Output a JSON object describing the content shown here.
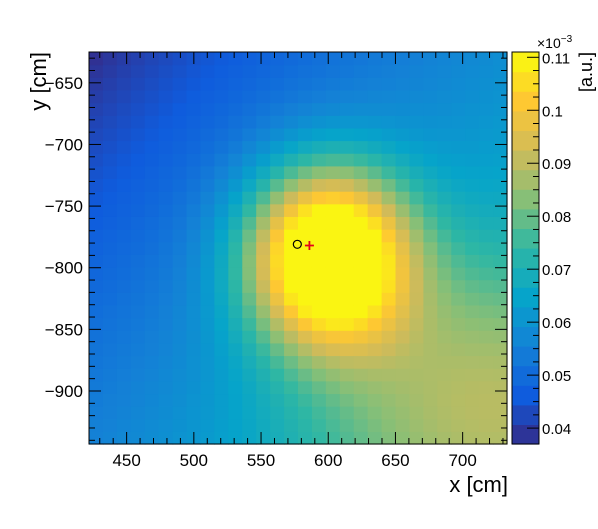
{
  "chart_data": {
    "type": "heatmap",
    "title": "",
    "xlabel": "x [cm]",
    "ylabel": "y [cm]",
    "xlim": [
      422,
      733
    ],
    "ylim": [
      -943,
      -625
    ],
    "grid": false,
    "x_ticks": [
      450,
      500,
      550,
      600,
      650,
      700
    ],
    "x_tick_labels": [
      "450",
      "500",
      "550",
      "600",
      "650",
      "700"
    ],
    "y_ticks": [
      -650,
      -700,
      -750,
      -800,
      -850,
      -900
    ],
    "y_tick_labels": [
      "−650",
      "−700",
      "−750",
      "−800",
      "−850",
      "−900"
    ],
    "bins": {
      "nx": 30,
      "ny": 31
    },
    "z_model": {
      "description": "approximate binned intensity",
      "peak_x": 600,
      "peak_y": -790,
      "peak_value": 0.11,
      "background_gradient_angle_deg": 315,
      "min_value": 0.037
    },
    "colorbar": {
      "label": "[a.u.]",
      "exponent_label": "×10",
      "exponent_power": "−3",
      "zlim": [
        0.037,
        0.111
      ],
      "ticks": [
        0.04,
        0.05,
        0.06,
        0.07,
        0.08,
        0.09,
        0.1,
        0.11
      ],
      "tick_labels": [
        "0.04",
        "0.05",
        "0.06",
        "0.07",
        "0.08",
        "0.09",
        "0.1",
        "0.11"
      ],
      "colors": [
        "#352a87",
        "#0f5cdd",
        "#1481d6",
        "#06a4ca",
        "#2eb7a4",
        "#87bf77",
        "#d1bb59",
        "#fec832",
        "#f9fb0e"
      ]
    },
    "markers": [
      {
        "name": "circle-marker",
        "x": 577,
        "y": -781,
        "shape": "circle",
        "color": "#000000"
      },
      {
        "name": "cross-marker",
        "x": 586,
        "y": -782,
        "shape": "cross",
        "color": "#e3001b"
      }
    ]
  }
}
